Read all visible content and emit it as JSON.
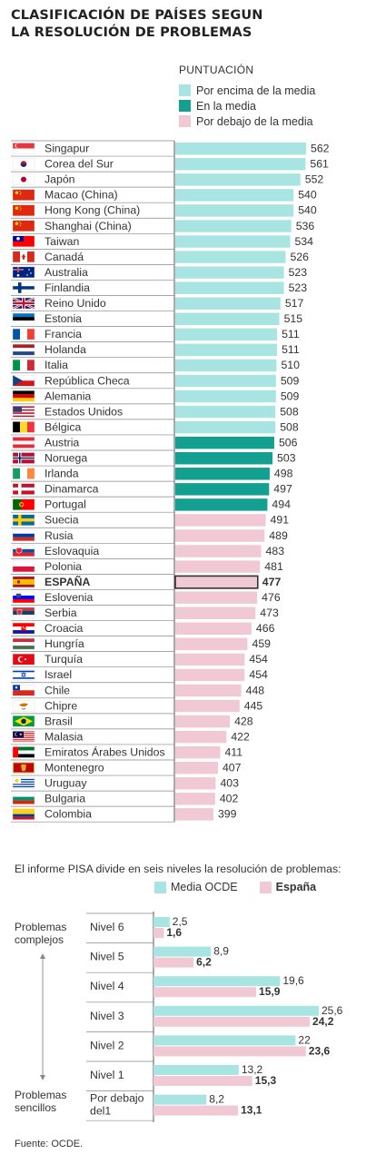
{
  "title_line1": "CLASIFICACIÓN DE PAÍSES SEGUN",
  "title_line2": "LA RESOLUCIÓN DE PROBLEMAS",
  "legend": {
    "title": "PUNTUACIÓN",
    "above": "Por encima de la media",
    "average": "En la media",
    "below": "Por debajo de la media"
  },
  "colors": {
    "above": "#a8e4e2",
    "average": "#13a091",
    "below": "#f1c9d5",
    "highlight_border": "#333333"
  },
  "chart_data": [
    {
      "type": "bar",
      "orientation": "horizontal",
      "title": "CLASIFICACIÓN DE PAÍSES SEGUN LA RESOLUCIÓN DE PROBLEMAS",
      "ylabel": "PUNTUACIÓN",
      "highlight": "ESPAÑA",
      "countries": [
        {
          "name": "Singapur",
          "flag": "singapore-flag",
          "value": 562,
          "group": "above"
        },
        {
          "name": "Corea del Sur",
          "flag": "south-korea-flag",
          "value": 561,
          "group": "above"
        },
        {
          "name": "Japón",
          "flag": "japan-flag",
          "value": 552,
          "group": "above"
        },
        {
          "name": "Macao (China)",
          "flag": "china-flag",
          "value": 540,
          "group": "above"
        },
        {
          "name": "Hong Kong (China)",
          "flag": "china-flag",
          "value": 540,
          "group": "above"
        },
        {
          "name": "Shanghai (China)",
          "flag": "china-flag",
          "value": 536,
          "group": "above"
        },
        {
          "name": "Taiwan",
          "flag": "taiwan-flag",
          "value": 534,
          "group": "above"
        },
        {
          "name": "Canadá",
          "flag": "canada-flag",
          "value": 526,
          "group": "above"
        },
        {
          "name": "Australia",
          "flag": "australia-flag",
          "value": 523,
          "group": "above"
        },
        {
          "name": "Finlandia",
          "flag": "finland-flag",
          "value": 523,
          "group": "above"
        },
        {
          "name": "Reino Unido",
          "flag": "uk-flag",
          "value": 517,
          "group": "above"
        },
        {
          "name": "Estonia",
          "flag": "estonia-flag",
          "value": 515,
          "group": "above"
        },
        {
          "name": "Francia",
          "flag": "france-flag",
          "value": 511,
          "group": "above"
        },
        {
          "name": "Holanda",
          "flag": "netherlands-flag",
          "value": 511,
          "group": "above"
        },
        {
          "name": "Italia",
          "flag": "italy-flag",
          "value": 510,
          "group": "above"
        },
        {
          "name": "República Checa",
          "flag": "czech-flag",
          "value": 509,
          "group": "above"
        },
        {
          "name": "Alemania",
          "flag": "germany-flag",
          "value": 509,
          "group": "above"
        },
        {
          "name": "Estados Unidos",
          "flag": "usa-flag",
          "value": 508,
          "group": "above"
        },
        {
          "name": "Bélgica",
          "flag": "belgium-flag",
          "value": 508,
          "group": "above"
        },
        {
          "name": "Austria",
          "flag": "austria-flag",
          "value": 506,
          "group": "average"
        },
        {
          "name": "Noruega",
          "flag": "norway-flag",
          "value": 503,
          "group": "average"
        },
        {
          "name": "Irlanda",
          "flag": "ireland-flag",
          "value": 498,
          "group": "average"
        },
        {
          "name": "Dinamarca",
          "flag": "denmark-flag",
          "value": 497,
          "group": "average"
        },
        {
          "name": "Portugal",
          "flag": "portugal-flag",
          "value": 494,
          "group": "average"
        },
        {
          "name": "Suecia",
          "flag": "sweden-flag",
          "value": 491,
          "group": "below"
        },
        {
          "name": "Rusia",
          "flag": "russia-flag",
          "value": 489,
          "group": "below"
        },
        {
          "name": "Eslovaquia",
          "flag": "slovakia-flag",
          "value": 483,
          "group": "below"
        },
        {
          "name": "Polonia",
          "flag": "poland-flag",
          "value": 481,
          "group": "below"
        },
        {
          "name": "ESPAÑA",
          "flag": "spain-flag",
          "value": 477,
          "group": "below"
        },
        {
          "name": "Eslovenia",
          "flag": "slovenia-flag",
          "value": 476,
          "group": "below"
        },
        {
          "name": "Serbia",
          "flag": "serbia-flag",
          "value": 473,
          "group": "below"
        },
        {
          "name": "Croacia",
          "flag": "croatia-flag",
          "value": 466,
          "group": "below"
        },
        {
          "name": "Hungría",
          "flag": "hungary-flag",
          "value": 459,
          "group": "below"
        },
        {
          "name": "Turquía",
          "flag": "turkey-flag",
          "value": 454,
          "group": "below"
        },
        {
          "name": "Israel",
          "flag": "israel-flag",
          "value": 454,
          "group": "below"
        },
        {
          "name": "Chile",
          "flag": "chile-flag",
          "value": 448,
          "group": "below"
        },
        {
          "name": "Chipre",
          "flag": "cyprus-flag",
          "value": 445,
          "group": "below"
        },
        {
          "name": "Brasil",
          "flag": "brazil-flag",
          "value": 428,
          "group": "below"
        },
        {
          "name": "Malasia",
          "flag": "malaysia-flag",
          "value": 422,
          "group": "below"
        },
        {
          "name": "Emiratos Árabes Unidos",
          "flag": "uae-flag",
          "value": 411,
          "group": "below"
        },
        {
          "name": "Montenegro",
          "flag": "montenegro-flag",
          "value": 407,
          "group": "below"
        },
        {
          "name": "Uruguay",
          "flag": "uruguay-flag",
          "value": 403,
          "group": "below"
        },
        {
          "name": "Bulgaria",
          "flag": "bulgaria-flag",
          "value": 402,
          "group": "below"
        },
        {
          "name": "Colombia",
          "flag": "colombia-flag",
          "value": 399,
          "group": "below"
        }
      ]
    },
    {
      "type": "bar",
      "orientation": "horizontal",
      "title": "El informe PISA divide en seis niveles la resolución de problemas:",
      "categories": [
        "Nivel 6",
        "Nivel 5",
        "Nivel 4",
        "Nivel 3",
        "Nivel 2",
        "Nivel 1",
        "Por debajo del1"
      ],
      "series": [
        {
          "name": "Media OCDE",
          "color": "#a8e4e2",
          "values": [
            2.5,
            8.9,
            19.6,
            25.6,
            22,
            13.2,
            8.2
          ]
        },
        {
          "name": "España",
          "color": "#f1c9d5",
          "values": [
            1.6,
            6.2,
            15.9,
            24.2,
            23.6,
            15.3,
            13.1
          ]
        }
      ],
      "value_labels": {
        "Media OCDE": [
          "2,5",
          "8,9",
          "19,6",
          "25,6",
          "22",
          "13,2",
          "8,2"
        ],
        "España": [
          "1,6",
          "6,2",
          "15,9",
          "24,2",
          "23,6",
          "15,3",
          "13,1"
        ]
      }
    }
  ],
  "levels_chart": {
    "intro": "El informe PISA divide en seis niveles la resolución de problemas:",
    "legend_oecd": "Media OCDE",
    "legend_spain": "España",
    "label_top": "Problemas complejos",
    "label_bottom": "Problemas sencillos",
    "level_labels": [
      [
        "Nivel 6"
      ],
      [
        "Nivel 5"
      ],
      [
        "Nivel 4"
      ],
      [
        "Nivel 3"
      ],
      [
        "Nivel 2"
      ],
      [
        "Nivel 1"
      ],
      [
        "Por debajo",
        "del1"
      ]
    ]
  },
  "source": "Fuente: OCDE."
}
